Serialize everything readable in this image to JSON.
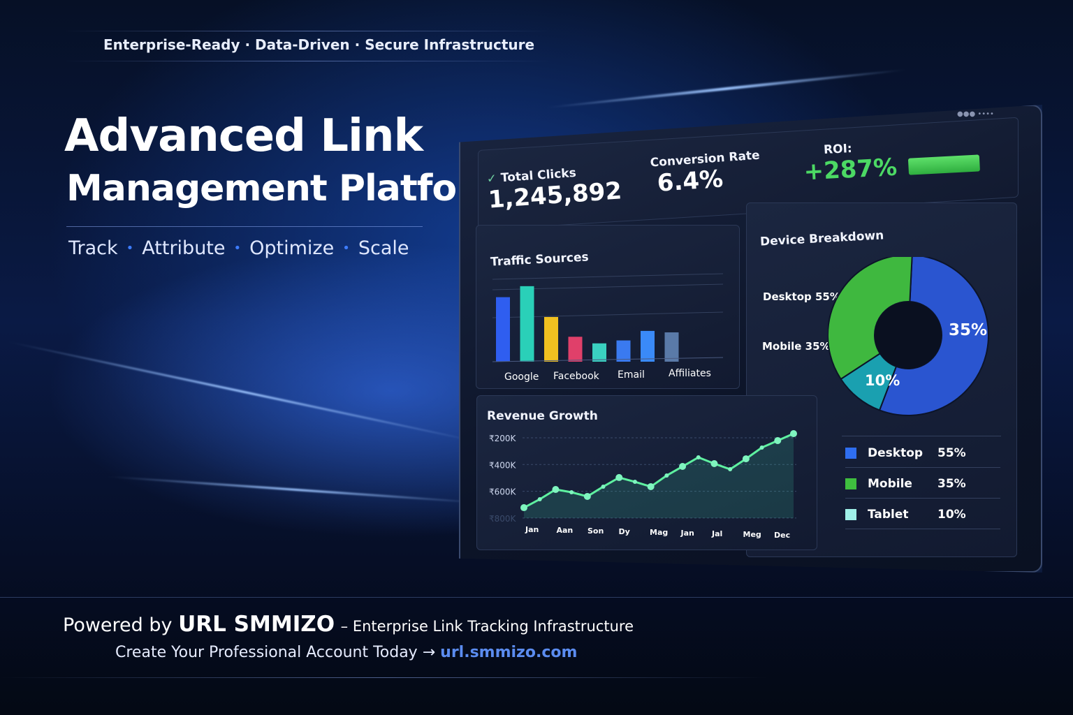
{
  "tagline": [
    "Enterprise-Ready",
    "Data-Driven",
    "Secure Infrastructure"
  ],
  "hero": {
    "title_line1": "Advanced Link",
    "title_line2": "Management Platform",
    "pillars": [
      "Track",
      "Attribute",
      "Optimize",
      "Scale"
    ]
  },
  "dashboard": {
    "window_dots": "●●● ••••",
    "stats": [
      {
        "label": "Total Clicks",
        "value": "1,245,892",
        "icon": "check-icon"
      },
      {
        "label": "Conversion Rate",
        "value": "6.4%"
      },
      {
        "label": "ROI:",
        "value": "+287%",
        "color": "#4cd964"
      }
    ],
    "traffic": {
      "title": "Traffic Sources",
      "labels": [
        "Google",
        "Facebook",
        "Email",
        "Affiliates"
      ]
    },
    "device": {
      "title": "Device Breakdown",
      "callouts": [
        "Desktop 55%",
        "Mobile 35%"
      ],
      "slice_labels": [
        "35%",
        "10%"
      ],
      "legend": [
        {
          "name": "Desktop",
          "value": "55%",
          "color": "#2f6ef0"
        },
        {
          "name": "Mobile",
          "value": "35%",
          "color": "#3fbf3f"
        },
        {
          "name": "Tablet",
          "value": "10%",
          "color": "#9ff0e8"
        }
      ]
    },
    "revenue": {
      "title": "Revenue Growth"
    }
  },
  "chart_data": [
    {
      "type": "bar",
      "title": "Traffic Sources",
      "categories": [
        "Google",
        "",
        "Facebook",
        "",
        "Email",
        "",
        "Affiliates",
        ""
      ],
      "values": [
        88,
        103,
        61,
        34,
        25,
        29,
        42,
        40
      ],
      "colors": [
        "#2f5ef0",
        "#2ad0b8",
        "#f0c020",
        "#e0406a",
        "#3ad0c0",
        "#3a7af0",
        "#3a8af8",
        "#5a7aa8"
      ]
    },
    {
      "type": "line",
      "title": "Revenue Growth",
      "x_tick_labels": [
        "Jan",
        "Aan",
        "Son",
        "Dy",
        "Mag",
        "Jan",
        "Jal",
        "Meg",
        "Dec"
      ],
      "y_tick_labels": [
        "₹200K",
        "₹400K",
        "₹600K",
        "₹800K"
      ],
      "ylim": [
        800,
        200
      ],
      "values": [
        722,
        659,
        586,
        607,
        638,
        565,
        497,
        529,
        565,
        482,
        414,
        346,
        393,
        435,
        357,
        273,
        221,
        169
      ],
      "color": "#5ef0a0",
      "grid": true
    },
    {
      "type": "pie",
      "title": "Device Breakdown",
      "categories": [
        "Desktop",
        "Mobile",
        "Tablet"
      ],
      "values": [
        55,
        35,
        10
      ]
    }
  ],
  "footer": {
    "powered_prefix": "Powered by",
    "brand": "URL SMMIZO",
    "powered_suffix": "– Enterprise Link Tracking Infrastructure",
    "cta": "Create Your Professional Account Today",
    "arrow": "→",
    "url": "url.smmizo.com",
    "url_color": "#5b8cf0"
  }
}
